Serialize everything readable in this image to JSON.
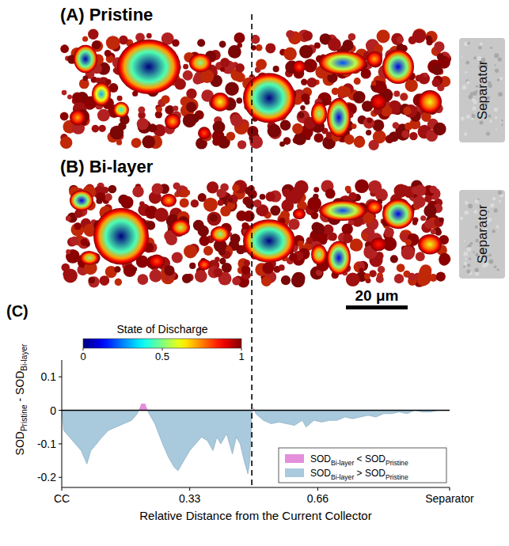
{
  "chart_data": {
    "type": "area",
    "panels": [
      {
        "title": "(A) Pristine",
        "side_label": "Separator"
      },
      {
        "title": "(B) Bi-layer",
        "side_label": "Separator"
      }
    ],
    "scale_bar": "20 μm",
    "colorbar": {
      "title": "State of Discharge",
      "range": [
        0,
        1
      ],
      "ticks": [
        0,
        0.5,
        1
      ]
    },
    "panel_label": "(C)",
    "xlabel": "Relative Distance from the Current Collector",
    "ylabel": [
      {
        "text": "SOD"
      },
      {
        "sub": "Pristine"
      },
      {
        "text": " - SOD"
      },
      {
        "sub": "Bi-layer"
      }
    ],
    "xlim": [
      0,
      1
    ],
    "xticks": [
      {
        "value": 0,
        "label": "CC"
      },
      0.33,
      0.66,
      {
        "value": 1,
        "label": "Separator"
      }
    ],
    "ylim": [
      -0.23,
      0.15
    ],
    "yticks": [
      -0.2,
      -0.1,
      0,
      0.1
    ],
    "divider_x": 0.49,
    "x": [
      0,
      0.005,
      0.02,
      0.035,
      0.05,
      0.065,
      0.075,
      0.09,
      0.1,
      0.12,
      0.14,
      0.16,
      0.18,
      0.195,
      0.205,
      0.215,
      0.225,
      0.24,
      0.26,
      0.275,
      0.29,
      0.3,
      0.315,
      0.33,
      0.345,
      0.36,
      0.375,
      0.39,
      0.4,
      0.41,
      0.425,
      0.44,
      0.45,
      0.46,
      0.47,
      0.48,
      0.485,
      0.49,
      0.495,
      0.5,
      0.52,
      0.54,
      0.56,
      0.58,
      0.6,
      0.62,
      0.63,
      0.65,
      0.67,
      0.69,
      0.71,
      0.73,
      0.75,
      0.77,
      0.79,
      0.81,
      0.83,
      0.85,
      0.87,
      0.89,
      0.91,
      0.93,
      0.95,
      0.97,
      1
    ],
    "values": [
      0,
      -0.06,
      -0.08,
      -0.1,
      -0.12,
      -0.16,
      -0.12,
      -0.1,
      -0.085,
      -0.06,
      -0.05,
      -0.04,
      -0.03,
      -0.01,
      0.02,
      0.02,
      -0.01,
      -0.04,
      -0.1,
      -0.14,
      -0.17,
      -0.18,
      -0.15,
      -0.12,
      -0.1,
      -0.08,
      -0.09,
      -0.12,
      -0.08,
      -0.1,
      -0.07,
      -0.13,
      -0.08,
      -0.1,
      -0.15,
      -0.19,
      -0.15,
      -0.01,
      0.01,
      -0.01,
      -0.03,
      -0.04,
      -0.035,
      -0.04,
      -0.045,
      -0.03,
      -0.05,
      -0.03,
      -0.035,
      -0.03,
      -0.03,
      -0.02,
      -0.025,
      -0.02,
      -0.015,
      -0.02,
      -0.01,
      -0.01,
      -0.005,
      -0.01,
      0,
      -0.005,
      -0.005,
      0,
      0
    ],
    "legend": "lower right",
    "legend_entries": [
      {
        "label": [
          {
            "text": "SOD"
          },
          {
            "sub": "Bi-layer"
          },
          {
            "text": " < SOD"
          },
          {
            "sub": "Pristine"
          }
        ],
        "color": "#e48fdb"
      },
      {
        "label": [
          {
            "text": "SOD"
          },
          {
            "sub": "Bi-layer"
          },
          {
            "text": " > SOD"
          },
          {
            "sub": "Pristine"
          }
        ],
        "color": "#a9c9dc"
      }
    ]
  }
}
